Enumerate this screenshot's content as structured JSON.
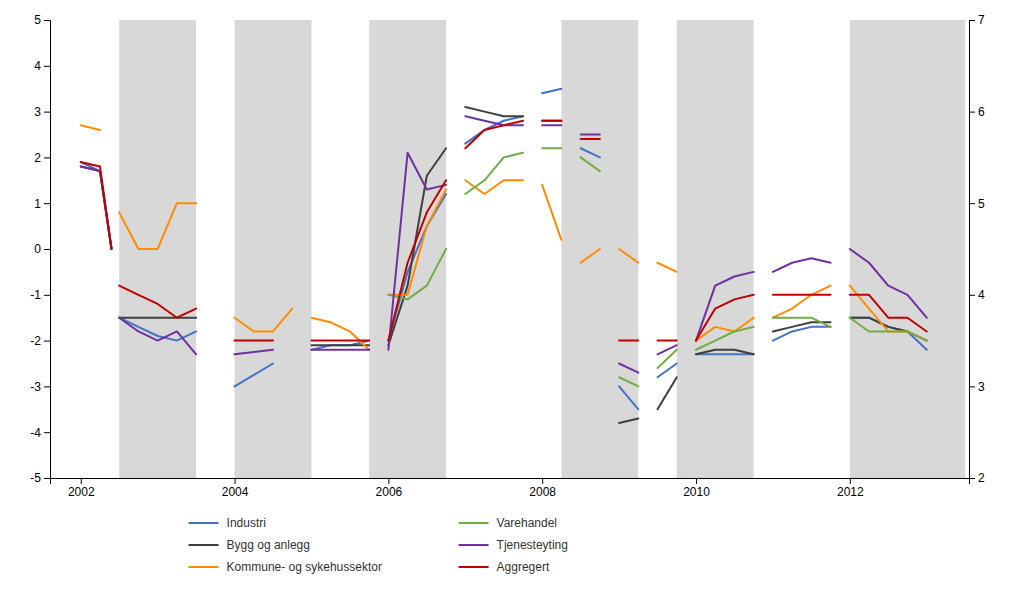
{
  "chart_data": {
    "type": "line",
    "xlim": [
      2001.6,
      2013.55
    ],
    "xticks": [
      2002,
      2004,
      2006,
      2008,
      2010,
      2012
    ],
    "ylim": [
      -5,
      5
    ],
    "yticks": [
      -5,
      -4,
      -3,
      -2,
      -1,
      0,
      1,
      2,
      3,
      4,
      5
    ],
    "y2lim": [
      2,
      7
    ],
    "y2ticks": [
      2,
      3,
      4,
      5,
      6,
      7
    ],
    "grid": false,
    "legend": "bottom",
    "bands": [
      {
        "range": [
          2002.5,
          2003.5
        ],
        "color": "#D8D8D8"
      },
      {
        "range": [
          2004.0,
          2005.0
        ],
        "color": "#D8D8D8"
      },
      {
        "range": [
          2005.75,
          2006.75
        ],
        "color": "#D8D8D8"
      },
      {
        "range": [
          2008.25,
          2009.25
        ],
        "color": "#D8D8D8"
      },
      {
        "range": [
          2009.75,
          2010.75
        ],
        "color": "#D8D8D8"
      },
      {
        "range": [
          2012.0,
          2013.5
        ],
        "color": "#D8D8D8"
      }
    ],
    "series": [
      {
        "name": "Industri",
        "color": "#4472C4",
        "x": [
          2002.0,
          2002.25,
          2002.4,
          null,
          2002.5,
          2002.75,
          2003.0,
          2003.25,
          2003.5,
          null,
          2004.0,
          2004.5,
          null,
          2005.0,
          2005.25,
          2005.5,
          2005.75,
          null,
          2006.0,
          2006.25,
          2006.5,
          2006.75,
          null,
          2007.0,
          2007.25,
          2007.5,
          2007.75,
          null,
          2008.0,
          2008.25,
          null,
          2008.5,
          2008.75,
          null,
          2009.0,
          2009.25,
          null,
          2009.5,
          2009.75,
          null,
          2010.0,
          2010.25,
          2010.5,
          2010.75,
          null,
          2011.0,
          2011.25,
          2011.5,
          2011.75,
          null,
          2012.0,
          2012.25,
          2012.5,
          2012.75,
          2013.0
        ],
        "values": [
          1.9,
          1.7,
          0.0,
          null,
          -1.5,
          -1.7,
          -1.9,
          -2.0,
          -1.8,
          null,
          -3.0,
          -2.5,
          null,
          -2.2,
          -2.1,
          -2.1,
          -2.0,
          null,
          -2.0,
          -0.5,
          0.5,
          1.2,
          null,
          2.3,
          2.6,
          2.8,
          2.9,
          null,
          3.4,
          3.5,
          null,
          2.2,
          2.0,
          null,
          -3.0,
          -3.5,
          null,
          -2.8,
          -2.5,
          null,
          -2.3,
          -2.3,
          -2.3,
          -2.3,
          null,
          -2.0,
          -1.8,
          -1.7,
          -1.7,
          null,
          -1.5,
          -1.5,
          -1.7,
          -1.8,
          -2.2
        ]
      },
      {
        "name": "Bygg og anlegg",
        "color": "#3F3F3F",
        "x": [
          2002.0,
          2002.25,
          2002.4,
          null,
          2002.5,
          2002.75,
          2003.0,
          2003.5,
          null,
          2005.0,
          2005.25,
          2005.5,
          2005.75,
          null,
          2006.0,
          2006.25,
          2006.5,
          2006.75,
          null,
          2007.0,
          2007.25,
          2007.5,
          2007.75,
          null,
          2008.0,
          2008.25,
          null,
          2009.0,
          2009.25,
          null,
          2009.5,
          2009.75,
          null,
          2010.0,
          2010.25,
          2010.5,
          2010.75,
          null,
          2011.0,
          2011.25,
          2011.5,
          2011.75,
          null,
          2012.0,
          2012.25,
          2012.5,
          2012.75,
          2013.0
        ],
        "values": [
          1.8,
          1.7,
          0.0,
          null,
          -1.5,
          -1.5,
          -1.5,
          -1.5,
          null,
          -2.1,
          -2.1,
          -2.1,
          -2.1,
          null,
          -2.1,
          -0.8,
          1.6,
          2.2,
          null,
          3.1,
          3.0,
          2.9,
          2.9,
          null,
          2.8,
          2.8,
          null,
          -3.8,
          -3.7,
          null,
          -3.5,
          -2.8,
          null,
          -2.3,
          -2.2,
          -2.2,
          -2.3,
          null,
          -1.8,
          -1.7,
          -1.6,
          -1.6,
          null,
          -1.5,
          -1.5,
          -1.7,
          -1.8,
          -2.0
        ]
      },
      {
        "name": "Kommune- og sykehussektor",
        "color": "#FF8C00",
        "x": [
          2002.0,
          2002.25,
          null,
          2002.5,
          2002.75,
          2003.0,
          2003.25,
          2003.5,
          null,
          2004.0,
          2004.25,
          2004.5,
          2004.75,
          null,
          2005.0,
          2005.25,
          2005.5,
          2005.75,
          null,
          2006.0,
          2006.25,
          2006.5,
          2006.75,
          null,
          2007.0,
          2007.25,
          2007.5,
          2007.75,
          null,
          2008.0,
          2008.25,
          null,
          2008.5,
          2008.75,
          null,
          2009.0,
          2009.25,
          null,
          2009.5,
          2009.75,
          null,
          2010.0,
          2010.25,
          2010.5,
          2010.75,
          null,
          2011.0,
          2011.25,
          2011.5,
          2011.75,
          null,
          2012.0,
          2012.25,
          2012.5,
          2012.75,
          2013.0
        ],
        "values": [
          2.7,
          2.6,
          null,
          0.8,
          0.0,
          0.0,
          1.0,
          1.0,
          null,
          -1.5,
          -1.8,
          -1.8,
          -1.3,
          null,
          -1.5,
          -1.6,
          -1.8,
          -2.2,
          null,
          -1.0,
          -1.0,
          0.5,
          1.3,
          null,
          1.5,
          1.2,
          1.5,
          1.5,
          null,
          1.4,
          0.2,
          null,
          -0.3,
          0.0,
          null,
          0.0,
          -0.3,
          null,
          -0.3,
          -0.5,
          null,
          -2.0,
          -1.7,
          -1.8,
          -1.5,
          null,
          -1.5,
          -1.3,
          -1.0,
          -0.8,
          null,
          -0.8,
          -1.3,
          -1.8,
          -1.8,
          -2.0
        ]
      },
      {
        "name": "Varehandel",
        "color": "#70AD47",
        "x": [
          2005.75,
          null,
          2006.0,
          2006.25,
          2006.5,
          2006.75,
          null,
          2007.0,
          2007.25,
          2007.5,
          2007.75,
          null,
          2008.0,
          2008.25,
          null,
          2008.5,
          2008.75,
          null,
          2009.0,
          2009.25,
          null,
          2009.5,
          2009.75,
          null,
          2010.0,
          2010.25,
          2010.5,
          2010.75,
          null,
          2011.0,
          2011.25,
          2011.5,
          2011.75,
          null,
          2012.0,
          2012.25,
          2012.5,
          2012.75,
          2013.0
        ],
        "values": [
          -2.2,
          null,
          -1.0,
          -1.1,
          -0.8,
          0.0,
          null,
          1.2,
          1.5,
          2.0,
          2.1,
          null,
          2.2,
          2.2,
          null,
          2.0,
          1.7,
          null,
          -2.8,
          -3.0,
          null,
          -2.6,
          -2.2,
          null,
          -2.2,
          -2.0,
          -1.8,
          -1.7,
          null,
          -1.5,
          -1.5,
          -1.5,
          -1.7,
          null,
          -1.5,
          -1.8,
          -1.8,
          -1.8,
          -2.0
        ]
      },
      {
        "name": "Tjenesteyting",
        "color": "#7030A0",
        "x": [
          2002.0,
          2002.25,
          2002.4,
          null,
          2002.5,
          2002.75,
          2003.0,
          2003.25,
          2003.5,
          null,
          2004.0,
          2004.5,
          null,
          2005.0,
          2005.75,
          null,
          2006.0,
          2006.25,
          2006.5,
          2006.75,
          null,
          2007.0,
          2007.25,
          2007.5,
          2007.75,
          null,
          2008.0,
          2008.25,
          null,
          2008.5,
          2008.75,
          null,
          2009.0,
          2009.25,
          null,
          2009.5,
          2009.75,
          null,
          2010.0,
          2010.25,
          2010.5,
          2010.75,
          null,
          2011.0,
          2011.25,
          2011.5,
          2011.75,
          null,
          2012.0,
          2012.25,
          2012.5,
          2012.75,
          2013.0
        ],
        "values": [
          1.8,
          1.7,
          0.0,
          null,
          -1.5,
          -1.8,
          -2.0,
          -1.8,
          -2.3,
          null,
          -2.3,
          -2.2,
          null,
          -2.2,
          -2.2,
          null,
          -2.2,
          2.1,
          1.3,
          1.4,
          null,
          2.9,
          2.8,
          2.7,
          2.7,
          null,
          2.7,
          2.7,
          null,
          2.5,
          2.5,
          null,
          -2.5,
          -2.7,
          null,
          -2.3,
          -2.1,
          null,
          -2.0,
          -0.8,
          -0.6,
          -0.5,
          null,
          -0.5,
          -0.3,
          -0.2,
          -0.3,
          null,
          0.0,
          -0.3,
          -0.8,
          -1.0,
          -1.5
        ]
      },
      {
        "name": "Aggregert",
        "color": "#C00000",
        "x": [
          2002.0,
          2002.25,
          2002.4,
          null,
          2002.5,
          2002.75,
          2003.0,
          2003.25,
          2003.5,
          null,
          2004.0,
          2004.25,
          2004.5,
          null,
          2005.0,
          2005.25,
          2005.5,
          2005.75,
          null,
          2006.0,
          2006.25,
          2006.5,
          2006.75,
          null,
          2007.0,
          2007.25,
          2007.5,
          2007.75,
          null,
          2008.0,
          2008.25,
          null,
          2008.5,
          2008.75,
          null,
          2009.0,
          2009.25,
          null,
          2009.5,
          2009.75,
          null,
          2010.0,
          2010.25,
          2010.5,
          2010.75,
          null,
          2011.0,
          2011.25,
          2011.5,
          2011.75,
          null,
          2012.0,
          2012.25,
          2012.5,
          2012.75,
          2013.0
        ],
        "values": [
          1.9,
          1.8,
          0.0,
          null,
          -0.8,
          -1.0,
          -1.2,
          -1.5,
          -1.3,
          null,
          -2.0,
          -2.0,
          -2.0,
          null,
          -2.0,
          -2.0,
          -2.0,
          -2.0,
          null,
          -2.0,
          -0.3,
          0.8,
          1.5,
          null,
          2.2,
          2.6,
          2.7,
          2.8,
          null,
          2.8,
          2.8,
          null,
          2.4,
          2.4,
          null,
          -2.0,
          -2.0,
          null,
          -2.0,
          -2.0,
          null,
          -2.0,
          -1.3,
          -1.1,
          -1.0,
          null,
          -1.0,
          -1.0,
          -1.0,
          -1.0,
          null,
          -1.0,
          -1.0,
          -1.5,
          -1.5,
          -1.8
        ]
      }
    ]
  }
}
